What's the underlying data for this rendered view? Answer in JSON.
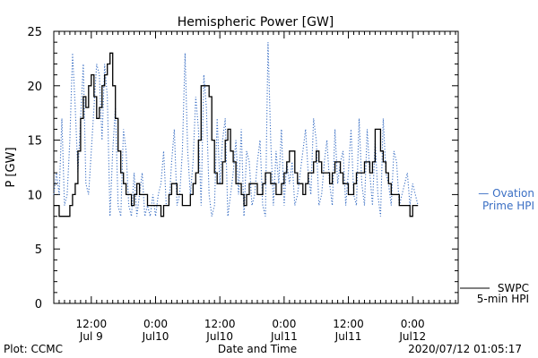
{
  "chart_data": {
    "type": "line",
    "title": "Hemispheric Power [GW]",
    "ylabel": "P [GW]",
    "xlabel": "Date and Time",
    "ylim": [
      0,
      25
    ],
    "y_ticks": [
      0,
      5,
      10,
      15,
      20,
      25
    ],
    "grid": false,
    "x_unit": "hours since Jul 8 05:00 UT",
    "x_range": [
      0,
      75.5
    ],
    "x_ticks": [
      {
        "x": 7,
        "top": "12:00",
        "bottom": "Jul 9"
      },
      {
        "x": 19,
        "top": "0:00",
        "bottom": "Jul10"
      },
      {
        "x": 31,
        "top": "12:00",
        "bottom": "Jul10"
      },
      {
        "x": 43,
        "top": "0:00",
        "bottom": "Jul11"
      },
      {
        "x": 55,
        "top": "12:00",
        "bottom": "Jul11"
      },
      {
        "x": 67,
        "top": "0:00",
        "bottom": "Jul12"
      }
    ],
    "series": [
      {
        "name": "SWPC 5-min HPI",
        "color": "#000000",
        "style": "solid",
        "x": [
          0,
          0.5,
          1,
          1.5,
          2,
          2.5,
          3,
          3.5,
          4,
          4.5,
          5,
          5.5,
          6,
          6.5,
          7,
          7.5,
          8,
          8.5,
          9,
          9.5,
          10,
          10.5,
          11,
          11.5,
          12,
          12.5,
          13,
          13.5,
          14,
          14.5,
          15,
          15.5,
          16,
          16.5,
          17,
          17.5,
          18,
          18.5,
          19,
          19.5,
          20,
          20.5,
          21,
          21.5,
          22,
          22.5,
          23,
          23.5,
          24,
          24.5,
          25,
          25.5,
          26,
          26.5,
          27,
          27.5,
          28,
          28.5,
          29,
          29.5,
          30,
          30.5,
          31,
          31.5,
          32,
          32.5,
          33,
          33.5,
          34,
          34.5,
          35,
          35.5,
          36,
          36.5,
          37,
          37.5,
          38,
          38.5,
          39,
          39.5,
          40,
          40.5,
          41,
          41.5,
          42,
          42.5,
          43,
          43.5,
          44,
          44.5,
          45,
          45.5,
          46,
          46.5,
          47,
          47.5,
          48,
          48.5,
          49,
          49.5,
          50,
          50.5,
          51,
          51.5,
          52,
          52.5,
          53,
          53.5,
          54,
          54.5,
          55,
          55.5,
          56,
          56.5,
          57,
          57.5,
          58,
          58.5,
          59,
          59.5,
          60,
          60.5,
          61,
          61.5,
          62,
          62.5,
          63,
          63.5,
          64,
          64.5,
          65,
          65.5,
          66,
          66.5,
          67,
          67.5,
          68
        ],
        "values": [
          9,
          9,
          8,
          8,
          8,
          8,
          9,
          10,
          11,
          14,
          17,
          19,
          18,
          20,
          21,
          19,
          17,
          18,
          20,
          21,
          22,
          23,
          20,
          17,
          14,
          12,
          11,
          10,
          10,
          9,
          10,
          11,
          10,
          10,
          10,
          9,
          9,
          9,
          9,
          9,
          8,
          9,
          9,
          10,
          11,
          11,
          10,
          10,
          9,
          9,
          9,
          10,
          11,
          12,
          15,
          20,
          20,
          20,
          19,
          15,
          12,
          11,
          11,
          13,
          15,
          16,
          14,
          13,
          11,
          11,
          10,
          9,
          10,
          11,
          11,
          11,
          10,
          10,
          11,
          12,
          12,
          11,
          11,
          10,
          10,
          11,
          12,
          13,
          14,
          14,
          12,
          11,
          11,
          10,
          11,
          12,
          12,
          13,
          14,
          13,
          12,
          12,
          12,
          11,
          12,
          13,
          13,
          12,
          11,
          11,
          10,
          10,
          11,
          12,
          12,
          12,
          13,
          13,
          12,
          13,
          16,
          16,
          14,
          13,
          12,
          11,
          10,
          10,
          10,
          9,
          9,
          9,
          9,
          8,
          9,
          9,
          9
        ]
      },
      {
        "name": "Ovation Prime HPI",
        "color": "#3a6fc4",
        "style": "dotted",
        "x": [
          0,
          0.5,
          1,
          1.5,
          2,
          2.5,
          3,
          3.5,
          4,
          4.5,
          5,
          5.5,
          6,
          6.5,
          7,
          7.5,
          8,
          8.5,
          9,
          9.5,
          10,
          10.5,
          11,
          11.5,
          12,
          12.5,
          13,
          13.5,
          14,
          14.5,
          15,
          15.5,
          16,
          16.5,
          17,
          17.5,
          18,
          18.5,
          19,
          19.5,
          20,
          20.5,
          21,
          21.5,
          22,
          22.5,
          23,
          23.5,
          24,
          24.5,
          25,
          25.5,
          26,
          26.5,
          27,
          27.5,
          28,
          28.5,
          29,
          29.5,
          30,
          30.5,
          31,
          31.5,
          32,
          32.5,
          33,
          33.5,
          34,
          34.5,
          35,
          35.5,
          36,
          36.5,
          37,
          37.5,
          38,
          38.5,
          39,
          39.5,
          40,
          40.5,
          41,
          41.5,
          42,
          42.5,
          43,
          43.5,
          44,
          44.5,
          45,
          45.5,
          46,
          46.5,
          47,
          47.5,
          48,
          48.5,
          49,
          49.5,
          50,
          50.5,
          51,
          51.5,
          52,
          52.5,
          53,
          53.5,
          54,
          54.5,
          55,
          55.5,
          56,
          56.5,
          57,
          57.5,
          58,
          58.5,
          59,
          59.5,
          60,
          60.5,
          61,
          61.5,
          62,
          62.5,
          63,
          63.5,
          64,
          64.5,
          65,
          65.5,
          66,
          66.5,
          67,
          67.5,
          68
        ],
        "values": [
          10,
          12,
          10,
          17,
          9,
          10,
          15,
          23,
          18,
          12,
          17,
          22,
          11,
          10,
          14,
          18,
          22,
          21,
          15,
          22,
          19,
          8,
          14,
          18,
          9,
          8,
          16,
          14,
          9,
          8,
          12,
          8,
          10,
          12,
          8,
          9,
          8,
          10,
          8,
          10,
          11,
          14,
          9,
          9,
          13,
          16,
          9,
          10,
          14,
          23,
          14,
          10,
          13,
          19,
          16,
          9,
          21,
          18,
          10,
          8,
          9,
          17,
          11,
          15,
          17,
          8,
          10,
          12,
          15,
          10,
          16,
          8,
          14,
          13,
          9,
          10,
          13,
          15,
          9,
          8,
          24,
          15,
          9,
          14,
          11,
          16,
          9,
          13,
          11,
          13,
          9,
          10,
          12,
          14,
          16,
          12,
          10,
          17,
          15,
          9,
          10,
          13,
          15,
          11,
          9,
          16,
          11,
          13,
          14,
          9,
          12,
          16,
          10,
          9,
          17,
          11,
          9,
          16,
          12,
          9,
          15,
          10,
          8,
          17,
          12,
          11,
          9,
          14,
          13,
          9,
          10,
          11,
          12,
          9,
          11,
          10,
          9
        ]
      }
    ],
    "legend": [
      {
        "line1": "— Ovation",
        "line2": "Prime HPI",
        "color": "#3a6fc4",
        "position": "right-middle"
      },
      {
        "line1": "SWPC",
        "line2": "5-min HPI",
        "color": "#000000",
        "position": "right-bottom"
      }
    ],
    "footer": {
      "left": "Plot: CCMC",
      "center": "Date and Time",
      "right": "2020/07/12 01:05:17"
    }
  }
}
